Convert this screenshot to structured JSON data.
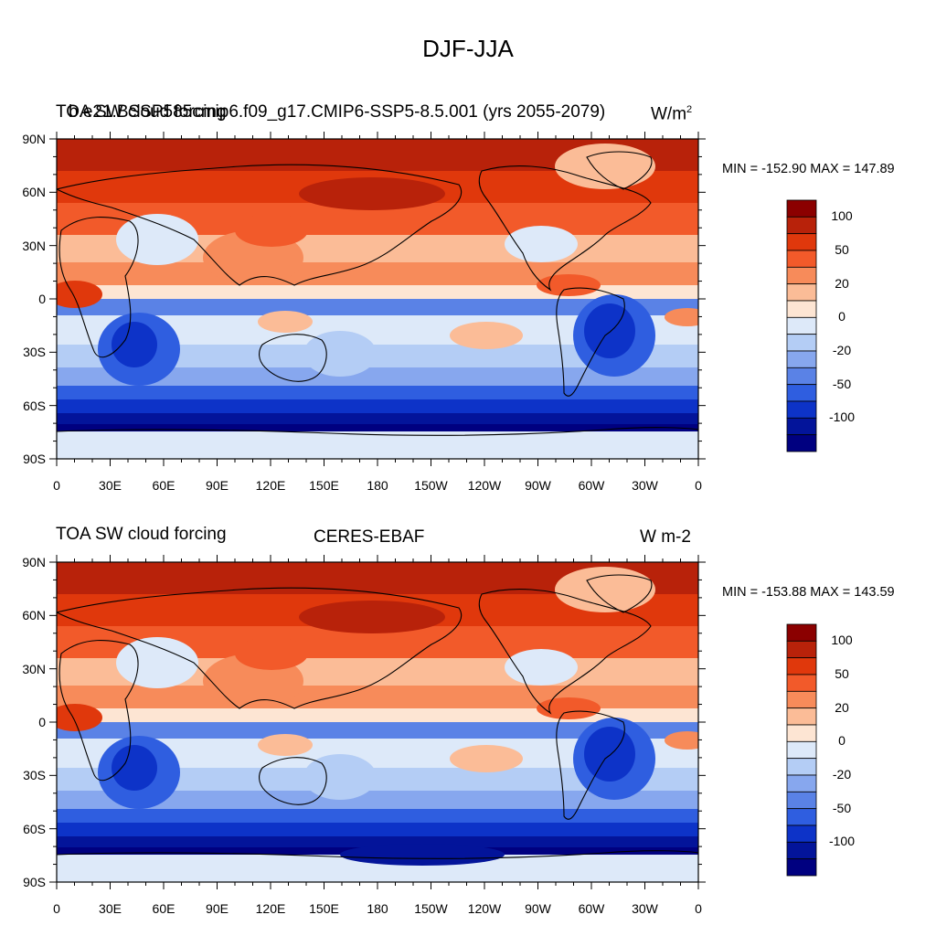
{
  "figure": {
    "title": "DJF-JJA"
  },
  "panels": [
    {
      "left_title": "TOA SW cloud forcing",
      "center_title": "b.e21.BSSP585cmip6.f09_g17.CMIP6-SSP5-8.5.001 (yrs 2055-2079)",
      "units": "W/m^2",
      "stats": "MIN = -152.90 MAX = 147.89"
    },
    {
      "left_title": "TOA SW cloud forcing",
      "center_title": "CERES-EBAF",
      "units": "W m-2",
      "stats": "MIN = -153.88 MAX = 143.59"
    }
  ],
  "axes": {
    "lat_ticks": [
      "90N",
      "60N",
      "30N",
      "0",
      "30S",
      "60S",
      "90S"
    ],
    "lon_ticks": [
      "0",
      "30E",
      "60E",
      "90E",
      "120E",
      "150E",
      "180",
      "150W",
      "120W",
      "90W",
      "60W",
      "30W",
      "0"
    ]
  },
  "colorbar": {
    "labels": [
      "100",
      "50",
      "20",
      "0",
      "-20",
      "-50",
      "-100"
    ],
    "colors": [
      "#8b0000",
      "#b8220a",
      "#e0380c",
      "#f25a2a",
      "#f78b5a",
      "#fbbc97",
      "#fde5d3",
      "#dde9f9",
      "#b4cdf5",
      "#87a7ee",
      "#5a82e6",
      "#2f5ee0",
      "#0d33c8",
      "#03149a",
      "#000080"
    ]
  },
  "chart_data": [
    {
      "type": "heatmap",
      "title": "TOA SW cloud forcing",
      "subtitle": "b.e21.BSSP585cmip6.f09_g17.CMIP6-SSP5-8.5.001 (yrs 2055-2079)",
      "units": "W/m^2",
      "min": -152.9,
      "max": 147.89,
      "x_range": [
        "0",
        "0"
      ],
      "y_range": [
        "90S",
        "90N"
      ],
      "contour_levels": [
        -100,
        -50,
        -20,
        0,
        20,
        50,
        100
      ]
    },
    {
      "type": "heatmap",
      "title": "TOA SW cloud forcing",
      "subtitle": "CERES-EBAF",
      "units": "W m-2",
      "min": -153.88,
      "max": 143.59,
      "x_range": [
        "0",
        "0"
      ],
      "y_range": [
        "90S",
        "90N"
      ],
      "contour_levels": [
        -100,
        -50,
        -20,
        0,
        20,
        50,
        100
      ]
    }
  ]
}
